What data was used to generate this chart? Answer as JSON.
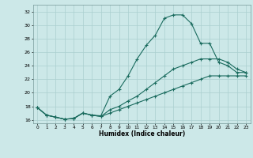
{
  "xlabel": "Humidex (Indice chaleur)",
  "ylabel": "",
  "bg_color": "#cce8e8",
  "grid_color": "#aacfcf",
  "line_color": "#1a6b5e",
  "xlim": [
    -0.5,
    23.5
  ],
  "ylim": [
    15.5,
    33.0
  ],
  "yticks": [
    16,
    18,
    20,
    22,
    24,
    26,
    28,
    30,
    32
  ],
  "xticks": [
    0,
    1,
    2,
    3,
    4,
    5,
    6,
    7,
    8,
    9,
    10,
    11,
    12,
    13,
    14,
    15,
    16,
    17,
    18,
    19,
    20,
    21,
    22,
    23
  ],
  "series": [
    {
      "x": [
        0,
        1,
        2,
        3,
        4,
        5,
        6,
        7,
        8,
        9,
        10,
        11,
        12,
        13,
        14,
        15,
        16,
        17,
        18,
        19,
        20,
        21,
        22,
        23
      ],
      "y": [
        17.8,
        16.7,
        16.4,
        16.1,
        16.2,
        17.0,
        16.7,
        16.6,
        19.5,
        20.5,
        22.5,
        25.0,
        27.0,
        28.5,
        31.0,
        31.5,
        31.5,
        30.2,
        27.3,
        27.3,
        24.5,
        24.0,
        23.0,
        23.0
      ]
    },
    {
      "x": [
        0,
        1,
        2,
        3,
        4,
        5,
        6,
        7,
        8,
        9,
        10,
        11,
        12,
        13,
        14,
        15,
        16,
        17,
        18,
        19,
        20,
        21,
        22,
        23
      ],
      "y": [
        17.8,
        16.7,
        16.4,
        16.1,
        16.2,
        17.0,
        16.7,
        16.5,
        17.5,
        18.0,
        18.8,
        19.5,
        20.5,
        21.5,
        22.5,
        23.5,
        24.0,
        24.5,
        25.0,
        25.0,
        25.0,
        24.5,
        23.5,
        23.0
      ]
    },
    {
      "x": [
        0,
        1,
        2,
        3,
        4,
        5,
        6,
        7,
        8,
        9,
        10,
        11,
        12,
        13,
        14,
        15,
        16,
        17,
        18,
        19,
        20,
        21,
        22,
        23
      ],
      "y": [
        17.8,
        16.7,
        16.4,
        16.1,
        16.2,
        17.0,
        16.7,
        16.5,
        17.0,
        17.5,
        18.0,
        18.5,
        19.0,
        19.5,
        20.0,
        20.5,
        21.0,
        21.5,
        22.0,
        22.5,
        22.5,
        22.5,
        22.5,
        22.5
      ]
    }
  ]
}
